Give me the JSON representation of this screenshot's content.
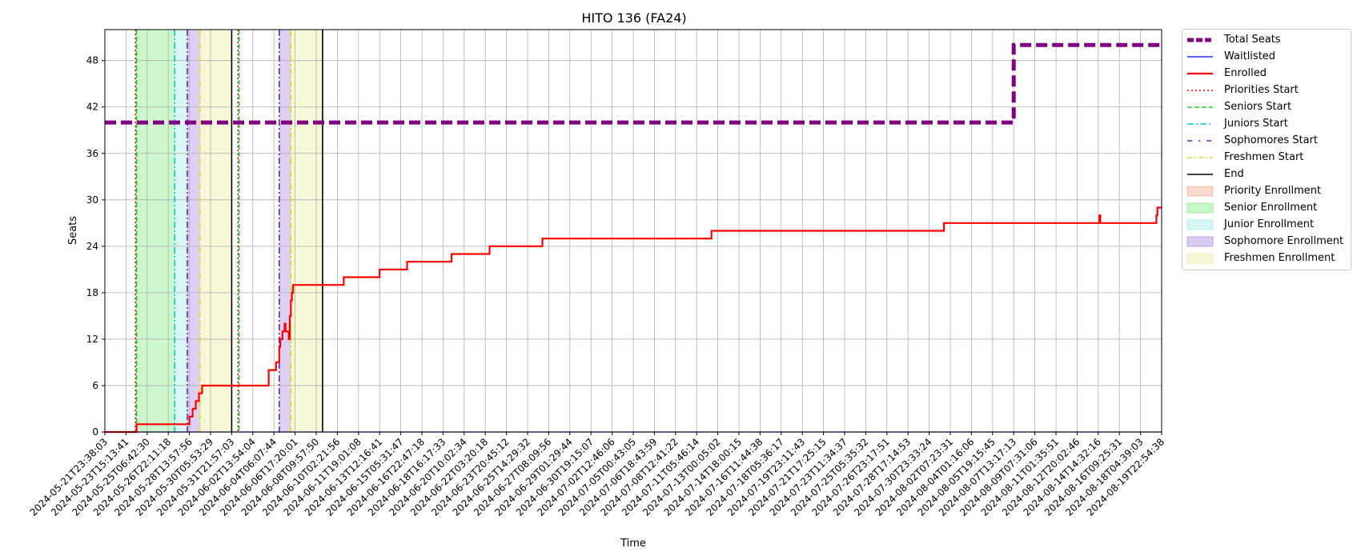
{
  "chart_data": {
    "type": "line",
    "title": "HITO 136 (FA24)",
    "xlabel": "Time",
    "ylabel": "Seats",
    "x_start": "2024-05-21T23:38:03",
    "x_end": "2024-08-19T22:54:38",
    "ylim": [
      0,
      52
    ],
    "yticks": [
      0,
      6,
      12,
      18,
      24,
      30,
      36,
      42,
      48
    ],
    "grid": true,
    "legend_position": "outside-right",
    "xtick_labels": [
      "2024-05-21T23:38:03",
      "2024-05-23T15:13:41",
      "2024-05-25T06:42:30",
      "2024-05-26T22:11:18",
      "2024-05-28T13:57:56",
      "2024-05-30T05:53:29",
      "2024-05-31T21:57:03",
      "2024-06-02T13:54:04",
      "2024-06-04T06:07:44",
      "2024-06-06T17:20:01",
      "2024-06-08T09:57:50",
      "2024-06-10T02:21:56",
      "2024-06-11T19:01:08",
      "2024-06-13T12:16:41",
      "2024-06-15T05:31:47",
      "2024-06-16T22:47:18",
      "2024-06-18T16:17:33",
      "2024-06-20T10:02:34",
      "2024-06-22T03:20:18",
      "2024-06-23T20:45:12",
      "2024-06-25T14:29:32",
      "2024-06-27T08:09:56",
      "2024-06-29T01:29:44",
      "2024-06-30T19:15:07",
      "2024-07-02T12:46:06",
      "2024-07-05T00:43:05",
      "2024-07-06T18:43:59",
      "2024-07-08T12:41:22",
      "2024-07-11T05:46:14",
      "2024-07-13T00:05:02",
      "2024-07-14T18:00:15",
      "2024-07-16T11:44:38",
      "2024-07-18T05:36:17",
      "2024-07-19T23:11:43",
      "2024-07-21T17:25:15",
      "2024-07-23T11:34:37",
      "2024-07-25T05:35:32",
      "2024-07-26T23:17:51",
      "2024-07-28T17:14:53",
      "2024-07-30T23:33:24",
      "2024-08-02T07:23:31",
      "2024-08-04T01:16:06",
      "2024-08-05T19:15:45",
      "2024-08-07T13:17:13",
      "2024-08-09T07:31:06",
      "2024-08-11T01:35:51",
      "2024-08-12T20:02:46",
      "2024-08-14T14:32:16",
      "2024-08-16T09:25:31",
      "2024-08-18T04:39:03",
      "2024-08-19T22:54:38"
    ],
    "series": [
      {
        "name": "Total Seats",
        "color": "#800080",
        "style": "dashed-thick",
        "points": [
          [
            0,
            40
          ],
          [
            43,
            40
          ],
          [
            43,
            50
          ],
          [
            50,
            50
          ]
        ]
      },
      {
        "name": "Waitlisted",
        "color": "#0000ff",
        "style": "solid-thin",
        "points": [
          [
            0,
            0
          ],
          [
            50,
            0
          ]
        ]
      },
      {
        "name": "Enrolled",
        "color": "#ff0000",
        "style": "solid",
        "points": [
          [
            0,
            0
          ],
          [
            1.5,
            0
          ],
          [
            1.5,
            1
          ],
          [
            4,
            1
          ],
          [
            4,
            2
          ],
          [
            4.15,
            2
          ],
          [
            4.15,
            3
          ],
          [
            4.3,
            3
          ],
          [
            4.3,
            4
          ],
          [
            4.45,
            4
          ],
          [
            4.45,
            5
          ],
          [
            4.6,
            5
          ],
          [
            4.6,
            6
          ],
          [
            7.75,
            6
          ],
          [
            7.75,
            8
          ],
          [
            8.1,
            8
          ],
          [
            8.1,
            9
          ],
          [
            8.25,
            9
          ],
          [
            8.25,
            11
          ],
          [
            8.3,
            11
          ],
          [
            8.3,
            12
          ],
          [
            8.4,
            12
          ],
          [
            8.4,
            13
          ],
          [
            8.5,
            13
          ],
          [
            8.5,
            14
          ],
          [
            8.55,
            14
          ],
          [
            8.55,
            13
          ],
          [
            8.7,
            13
          ],
          [
            8.7,
            12
          ],
          [
            8.75,
            12
          ],
          [
            8.75,
            15
          ],
          [
            8.8,
            15
          ],
          [
            8.8,
            17
          ],
          [
            8.85,
            17
          ],
          [
            8.85,
            18
          ],
          [
            8.9,
            18
          ],
          [
            8.9,
            19
          ],
          [
            11.3,
            19
          ],
          [
            11.3,
            20
          ],
          [
            13,
            20
          ],
          [
            13,
            21
          ],
          [
            14.3,
            21
          ],
          [
            14.3,
            22
          ],
          [
            16.4,
            22
          ],
          [
            16.4,
            23
          ],
          [
            18.2,
            23
          ],
          [
            18.2,
            24
          ],
          [
            20.7,
            24
          ],
          [
            20.7,
            25
          ],
          [
            28.7,
            25
          ],
          [
            28.7,
            26
          ],
          [
            39.7,
            26
          ],
          [
            39.7,
            27
          ],
          [
            47.05,
            27
          ],
          [
            47.05,
            28
          ],
          [
            47.1,
            28
          ],
          [
            47.1,
            27
          ],
          [
            49.75,
            27
          ],
          [
            49.75,
            28
          ],
          [
            49.8,
            28
          ],
          [
            49.8,
            29
          ],
          [
            50,
            29
          ]
        ]
      }
    ],
    "vertical_lines": [
      {
        "name": "Priorities Start",
        "color": "#ff0000",
        "style": "dotted",
        "positions": [
          1.45,
          6.3
        ]
      },
      {
        "name": "Seniors Start",
        "color": "#22cc22",
        "style": "dashed",
        "positions": [
          1.5,
          6.35
        ]
      },
      {
        "name": "Juniors Start",
        "color": "#00c8c8",
        "style": "dashdot",
        "positions": [
          3.3
        ]
      },
      {
        "name": "Sophomores Start",
        "color": "#6622cc",
        "style": "dashdot",
        "positions": [
          3.9,
          8.25
        ]
      },
      {
        "name": "Freshmen Start",
        "color": "#dddd22",
        "style": "dashdot",
        "positions": [
          4.5,
          8.8
        ]
      },
      {
        "name": "End",
        "color": "#000000",
        "style": "solid",
        "positions": [
          6.0,
          10.3
        ]
      }
    ],
    "spans": [
      {
        "name": "Priority Enrollment",
        "color": "#f4b6a0",
        "ranges": [
          [
            1.45,
            1.5
          ]
        ]
      },
      {
        "name": "Senior Enrollment",
        "color": "#90ee90",
        "ranges": [
          [
            1.5,
            3.3
          ]
        ]
      },
      {
        "name": "Junior Enrollment",
        "color": "#aeeeee",
        "ranges": [
          [
            3.3,
            3.9
          ]
        ]
      },
      {
        "name": "Sophomore Enrollment",
        "color": "#b497e6",
        "ranges": [
          [
            3.9,
            4.5
          ],
          [
            8.25,
            8.8
          ]
        ]
      },
      {
        "name": "Freshmen Enrollment",
        "color": "#f0f0a8",
        "ranges": [
          [
            4.5,
            6.0
          ],
          [
            8.8,
            10.3
          ]
        ]
      }
    ]
  },
  "legend": [
    {
      "label": "Total Seats",
      "kind": "line",
      "color": "#800080",
      "dash": "8,3",
      "width": 5
    },
    {
      "label": "Waitlisted",
      "kind": "line",
      "color": "#0000ff",
      "dash": "",
      "width": 1.2
    },
    {
      "label": "Enrolled",
      "kind": "line",
      "color": "#ff0000",
      "dash": "",
      "width": 2.2
    },
    {
      "label": "Priorities Start",
      "kind": "line",
      "color": "#ff0000",
      "dash": "2,3",
      "width": 1.5
    },
    {
      "label": "Seniors Start",
      "kind": "line",
      "color": "#22cc22",
      "dash": "6,3",
      "width": 1.5
    },
    {
      "label": "Juniors Start",
      "kind": "line",
      "color": "#00c8c8",
      "dash": "8,3,2,3",
      "width": 1.5
    },
    {
      "label": "Sophomores Start",
      "kind": "line",
      "color": "#6622cc",
      "dash": "6,8,2,8",
      "width": 1.5
    },
    {
      "label": "Freshmen Start",
      "kind": "line",
      "color": "#dddd22",
      "dash": "6,3,2,3",
      "width": 1.5
    },
    {
      "label": "End",
      "kind": "line",
      "color": "#000000",
      "dash": "",
      "width": 1.5
    },
    {
      "label": "Priority Enrollment",
      "kind": "patch",
      "color": "#f4b6a0"
    },
    {
      "label": "Senior Enrollment",
      "kind": "patch",
      "color": "#90ee90"
    },
    {
      "label": "Junior Enrollment",
      "kind": "patch",
      "color": "#aeeeee"
    },
    {
      "label": "Sophomore Enrollment",
      "kind": "patch",
      "color": "#b497e6"
    },
    {
      "label": "Freshmen Enrollment",
      "kind": "patch",
      "color": "#f0f0a8"
    }
  ]
}
